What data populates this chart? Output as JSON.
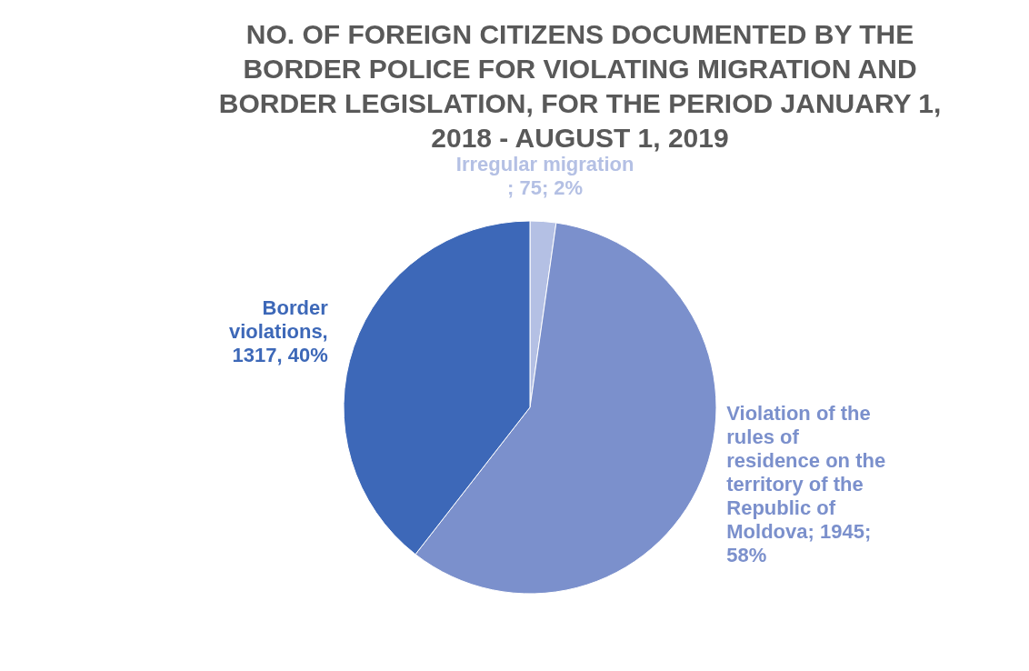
{
  "chart_data": {
    "type": "pie",
    "title": "NO. OF FOREIGN CITIZENS DOCUMENTED BY THE BORDER POLICE FOR VIOLATING MIGRATION AND BORDER LEGISLATION, FOR THE PERIOD JANUARY 1, 2018 - AUGUST 1, 2019",
    "categories": [
      "Irregular migration",
      "Violation of the rules of residence on the territory of the Republic of Moldova",
      "Border violations"
    ],
    "values": [
      75,
      1945,
      1317
    ],
    "colors": [
      "#b4c0e4",
      "#7b90cc",
      "#3d68b8"
    ],
    "value_labels": [
      " ; 75; 2%",
      "; 1945; 58%",
      ", 1317, 40%"
    ],
    "legend": false
  }
}
